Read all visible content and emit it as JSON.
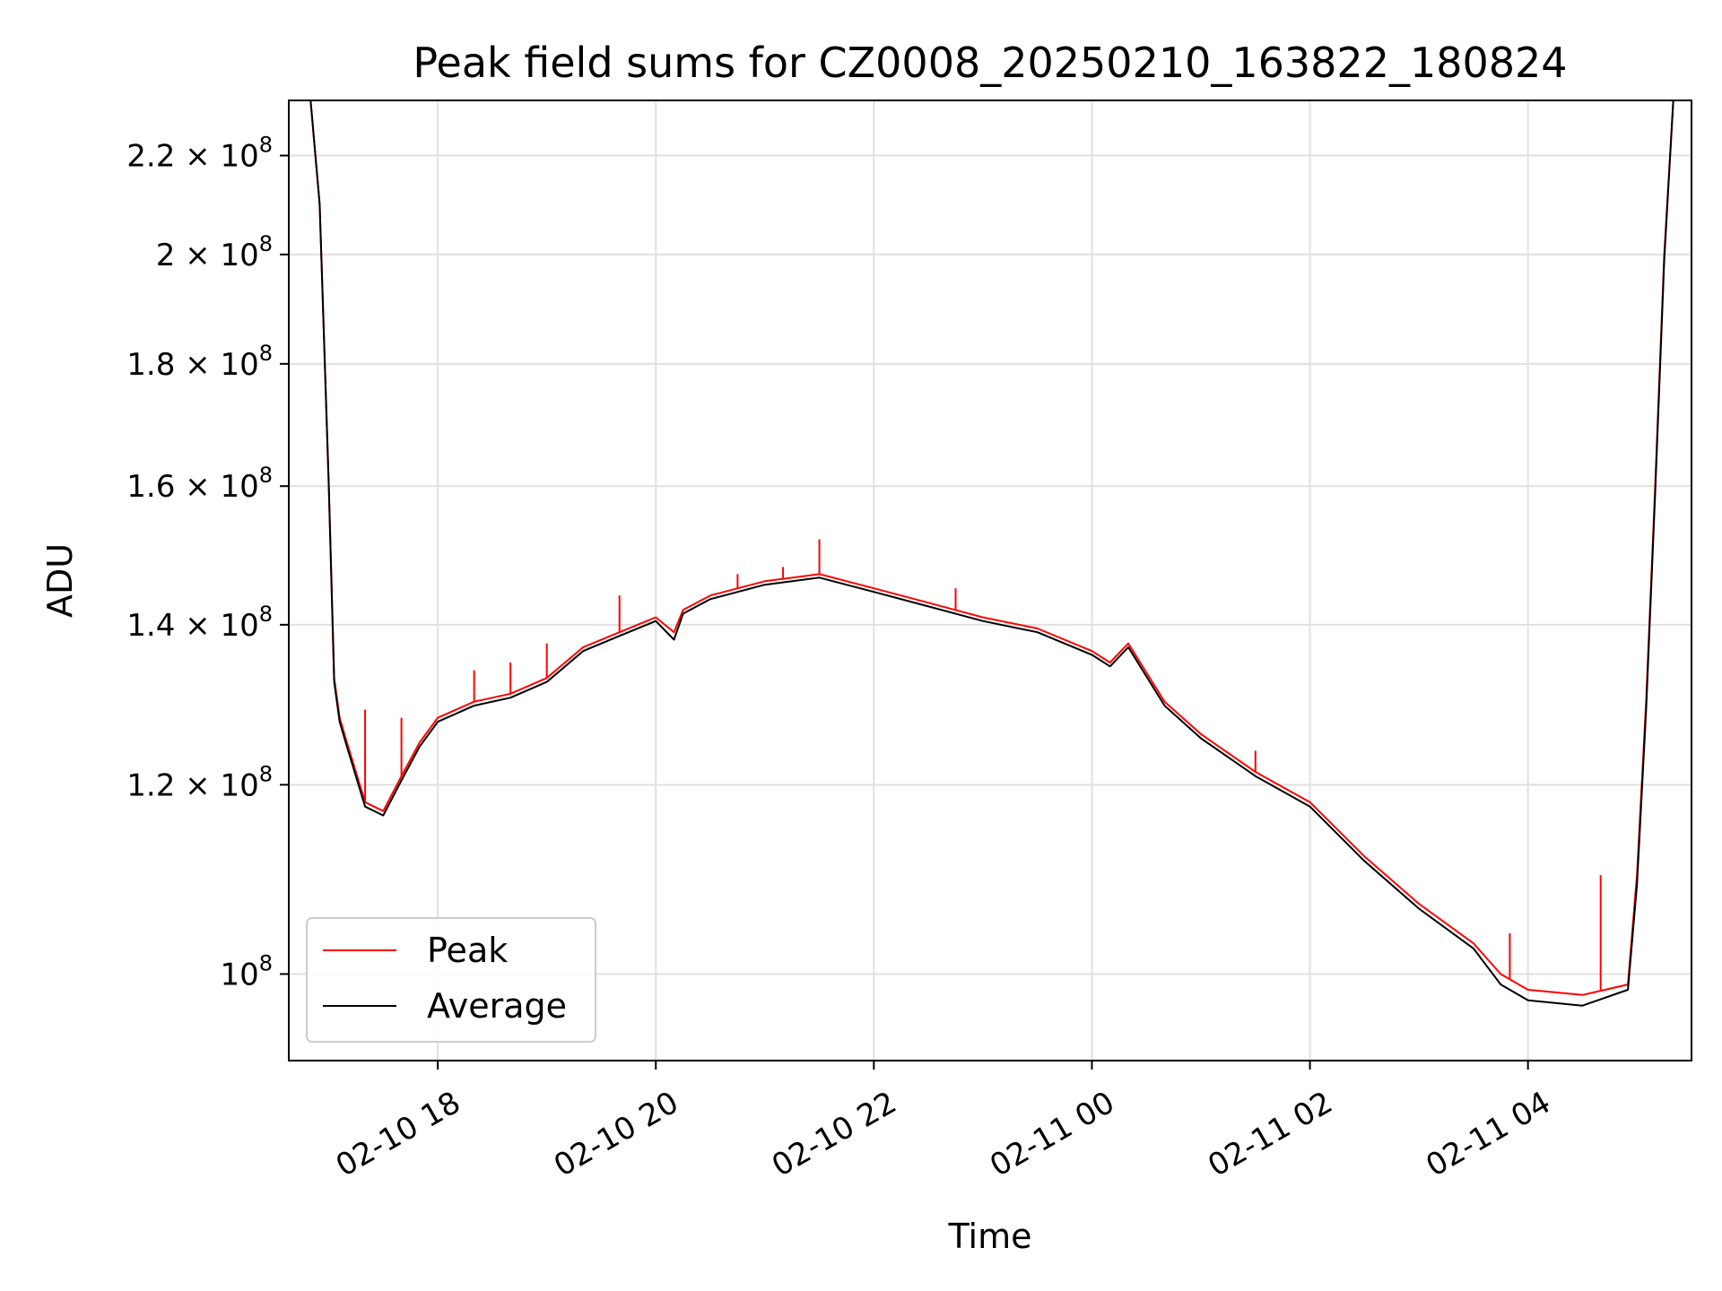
{
  "chart_data": {
    "type": "line",
    "title": "Peak field sums for CZ0008_20250210_163822_180824",
    "xlabel": "Time",
    "ylabel": "ADU",
    "yscale": "log",
    "xlim": [
      "2025-02-10 16:38",
      "2025-02-11 05:30"
    ],
    "ylim": [
      92000000,
      232000000
    ],
    "grid": true,
    "legend": "lower-left",
    "x_tick_labels": [
      "02-10 18",
      "02-10 20",
      "02-10 22",
      "02-11 00",
      "02-11 02",
      "02-11 04"
    ],
    "x_ticks": [
      "2025-02-10 18:00",
      "2025-02-10 20:00",
      "2025-02-10 22:00",
      "2025-02-11 00:00",
      "2025-02-11 02:00",
      "2025-02-11 04:00"
    ],
    "y_tick_labels": [
      {
        "value": 100000000,
        "mantissa": "",
        "exp": "8",
        "base": "10"
      },
      {
        "value": 120000000,
        "mantissa": "1.2 × ",
        "exp": "8",
        "base": "10"
      },
      {
        "value": 140000000,
        "mantissa": "1.4 × ",
        "exp": "8",
        "base": "10"
      },
      {
        "value": 160000000,
        "mantissa": "1.6 × ",
        "exp": "8",
        "base": "10"
      },
      {
        "value": 180000000,
        "mantissa": "1.8 × ",
        "exp": "8",
        "base": "10"
      },
      {
        "value": 200000000,
        "mantissa": "2 × ",
        "exp": "8",
        "base": "10"
      },
      {
        "value": 220000000,
        "mantissa": "2.2 × ",
        "exp": "8",
        "base": "10"
      }
    ],
    "series": [
      {
        "name": "Peak",
        "color": "#ff0000",
        "x": [
          "2025-02-10 16:38",
          "2025-02-10 16:50",
          "2025-02-10 16:55",
          "2025-02-10 17:00",
          "2025-02-10 17:03",
          "2025-02-10 17:06",
          "2025-02-10 17:10",
          "2025-02-10 17:20",
          "2025-02-10 17:30",
          "2025-02-10 17:40",
          "2025-02-10 17:50",
          "2025-02-10 18:00",
          "2025-02-10 18:20",
          "2025-02-10 18:40",
          "2025-02-10 19:00",
          "2025-02-10 19:20",
          "2025-02-10 19:40",
          "2025-02-10 20:00",
          "2025-02-10 20:10",
          "2025-02-10 20:15",
          "2025-02-10 20:30",
          "2025-02-10 21:00",
          "2025-02-10 21:30",
          "2025-02-10 22:00",
          "2025-02-10 22:30",
          "2025-02-10 23:00",
          "2025-02-10 23:30",
          "2025-02-11 00:00",
          "2025-02-11 00:10",
          "2025-02-11 00:20",
          "2025-02-11 00:40",
          "2025-02-11 01:00",
          "2025-02-11 01:30",
          "2025-02-11 02:00",
          "2025-02-11 02:30",
          "2025-02-11 03:00",
          "2025-02-11 03:30",
          "2025-02-11 03:45",
          "2025-02-11 04:00",
          "2025-02-11 04:30",
          "2025-02-11 04:55",
          "2025-02-11 05:00",
          "2025-02-11 05:05",
          "2025-02-11 05:10",
          "2025-02-11 05:15",
          "2025-02-11 05:20",
          "2025-02-11 05:30"
        ],
        "y": [
          232000000,
          232000000,
          210000000,
          160000000,
          133000000,
          128000000,
          125000000,
          118000000,
          117000000,
          121000000,
          125000000,
          128000000,
          130000000,
          131000000,
          133000000,
          137000000,
          139000000,
          141000000,
          139000000,
          142000000,
          144000000,
          146000000,
          147000000,
          145000000,
          143000000,
          141000000,
          139500000,
          136500000,
          135000000,
          137500000,
          130000000,
          126000000,
          121500000,
          118000000,
          112000000,
          107000000,
          103000000,
          100000000,
          98500000,
          98000000,
          99000000,
          110000000,
          130000000,
          160000000,
          200000000,
          232000000,
          232000000
        ],
        "spikes": [
          {
            "x": "2025-02-10 17:20",
            "y": 129000000
          },
          {
            "x": "2025-02-10 17:40",
            "y": 128000000
          },
          {
            "x": "2025-02-10 18:20",
            "y": 134000000
          },
          {
            "x": "2025-02-10 18:40",
            "y": 135000000
          },
          {
            "x": "2025-02-10 19:00",
            "y": 137500000
          },
          {
            "x": "2025-02-10 19:40",
            "y": 144000000
          },
          {
            "x": "2025-02-10 20:45",
            "y": 147000000
          },
          {
            "x": "2025-02-10 21:10",
            "y": 148000000
          },
          {
            "x": "2025-02-10 21:30",
            "y": 152000000
          },
          {
            "x": "2025-02-10 22:45",
            "y": 145000000
          },
          {
            "x": "2025-02-11 01:30",
            "y": 124000000
          },
          {
            "x": "2025-02-11 03:50",
            "y": 104000000
          },
          {
            "x": "2025-02-11 04:40",
            "y": 110000000
          }
        ]
      },
      {
        "name": "Average",
        "color": "#000000",
        "x": [
          "2025-02-10 16:38",
          "2025-02-10 16:50",
          "2025-02-10 16:55",
          "2025-02-10 17:00",
          "2025-02-10 17:03",
          "2025-02-10 17:06",
          "2025-02-10 17:10",
          "2025-02-10 17:20",
          "2025-02-10 17:30",
          "2025-02-10 17:40",
          "2025-02-10 17:50",
          "2025-02-10 18:00",
          "2025-02-10 18:20",
          "2025-02-10 18:40",
          "2025-02-10 19:00",
          "2025-02-10 19:20",
          "2025-02-10 19:40",
          "2025-02-10 20:00",
          "2025-02-10 20:10",
          "2025-02-10 20:15",
          "2025-02-10 20:30",
          "2025-02-10 21:00",
          "2025-02-10 21:30",
          "2025-02-10 22:00",
          "2025-02-10 22:30",
          "2025-02-10 23:00",
          "2025-02-10 23:30",
          "2025-02-11 00:00",
          "2025-02-11 00:10",
          "2025-02-11 00:20",
          "2025-02-11 00:40",
          "2025-02-11 01:00",
          "2025-02-11 01:30",
          "2025-02-11 02:00",
          "2025-02-11 02:30",
          "2025-02-11 03:00",
          "2025-02-11 03:30",
          "2025-02-11 03:45",
          "2025-02-11 04:00",
          "2025-02-11 04:30",
          "2025-02-11 04:55",
          "2025-02-11 05:00",
          "2025-02-11 05:05",
          "2025-02-11 05:10",
          "2025-02-11 05:15",
          "2025-02-11 05:20",
          "2025-02-11 05:30"
        ],
        "y": [
          232000000,
          232000000,
          210000000,
          160000000,
          132500000,
          127500000,
          124500000,
          117500000,
          116500000,
          120500000,
          124500000,
          127500000,
          129500000,
          130500000,
          132500000,
          136500000,
          138500000,
          140500000,
          138000000,
          141500000,
          143500000,
          145500000,
          146500000,
          144500000,
          142500000,
          140500000,
          139000000,
          136000000,
          134500000,
          137000000,
          129500000,
          125500000,
          121000000,
          117500000,
          111500000,
          106500000,
          102500000,
          99000000,
          97500000,
          97000000,
          98500000,
          109000000,
          129000000,
          159000000,
          199000000,
          232000000,
          232000000
        ]
      }
    ]
  }
}
